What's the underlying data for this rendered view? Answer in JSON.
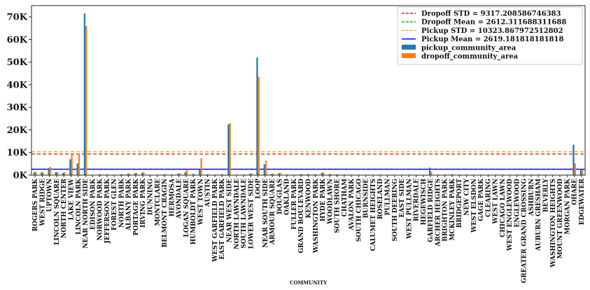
{
  "chart_data": {
    "type": "bar",
    "xlabel": "COMMUNITY",
    "ylabel": "",
    "ylim": [
      0,
      75000
    ],
    "y_ticks": [
      0,
      10000,
      20000,
      30000,
      40000,
      50000,
      60000,
      70000
    ],
    "y_tick_labels": [
      "0K",
      "10K",
      "20K",
      "30K",
      "40K",
      "50K",
      "60K",
      "70K"
    ],
    "grid": false,
    "legend_position": "top-right",
    "categories": [
      "ROGERS PARK",
      "WEST RIDGE",
      "UPTOWN",
      "LINCOLN SQUARE",
      "NORTH CENTER",
      "LAKE VIEW",
      "LINCOLN PARK",
      "NEAR NORTH SIDE",
      "EDISON PARK",
      "NORWOOD PARK",
      "JEFFERSON PARK",
      "FOREST GLEN",
      "NORTH PARK",
      "ALBANY PARK",
      "PORTAGE PARK",
      "IRVING PARK",
      "DUNNING",
      "MONTCLARE",
      "BELMONT CRAGIN",
      "HERMOSA",
      "AVONDALE",
      "LOGAN SQUARE",
      "HUMBOLDT PARK",
      "WEST TOWN",
      "AUSTIN",
      "WEST GARFIELD PARK",
      "EAST GARFIELD PARK",
      "NEAR WEST SIDE",
      "NORTH LAWNDALE",
      "SOUTH LAWNDALE",
      "LOWER WEST SIDE",
      "LOOP",
      "NEAR SOUTH SIDE",
      "ARMOUR SQUARE",
      "DOUGLAS",
      "OAKLAND",
      "FULLER PARK",
      "GRAND BOULEVARD",
      "KENWOOD",
      "WASHINGTON PARK",
      "HYDE PARK",
      "WOODLAWN",
      "SOUTH SHORE",
      "CHATHAM",
      "AVALON PARK",
      "SOUTH CHICAGO",
      "BURNSIDE",
      "CALUMET HEIGHTS",
      "ROSELAND",
      "PULLMAN",
      "SOUTH DEERING",
      "EAST SIDE",
      "WEST PULLMAN",
      "RIVERDALE",
      "HEGEWISCH",
      "GARFIELD RIDGE",
      "ARCHER HEIGHTS",
      "BRIGHTON PARK",
      "MCKINLEY PARK",
      "BRIDGEPORT",
      "NEW CITY",
      "WEST ELSDON",
      "GAGE PARK",
      "CLEARING",
      "WEST LAWN",
      "CHICAGO LAWN",
      "WEST ENGLEWOOD",
      "ENGLEWOOD",
      "GREATER GRAND CROSSING",
      "ASHBURN",
      "AUBURN GRESHAM",
      "BEVERLY",
      "WASHINGTON HEIGHTS",
      "MOUNT GREENWOOD",
      "MORGAN PARK",
      "OHARE",
      "EDGEWATER"
    ],
    "series": [
      {
        "name": "pickup_community_area",
        "color": "#1f77b4",
        "values": [
          1300,
          1200,
          3100,
          1300,
          1000,
          7000,
          5200,
          71500,
          60,
          300,
          200,
          100,
          300,
          600,
          800,
          1100,
          100,
          100,
          300,
          200,
          700,
          1300,
          400,
          2500,
          300,
          200,
          300,
          22500,
          150,
          150,
          600,
          52000,
          4800,
          500,
          800,
          200,
          100,
          400,
          400,
          300,
          1000,
          400,
          300,
          200,
          100,
          150,
          50,
          100,
          150,
          50,
          50,
          100,
          50,
          50,
          50,
          3300,
          150,
          200,
          300,
          200,
          150,
          100,
          100,
          150,
          150,
          150,
          100,
          150,
          200,
          150,
          150,
          150,
          100,
          100,
          100,
          13500,
          2800
        ]
      },
      {
        "name": "dropoff_community_area",
        "color": "#ff7f0e",
        "values": [
          1500,
          1400,
          3700,
          1400,
          1200,
          9000,
          9400,
          66000,
          80,
          400,
          300,
          150,
          400,
          800,
          1000,
          1300,
          150,
          150,
          400,
          300,
          900,
          2500,
          600,
          7500,
          400,
          300,
          400,
          23000,
          250,
          250,
          800,
          43500,
          6500,
          700,
          1000,
          300,
          150,
          500,
          500,
          400,
          1300,
          500,
          400,
          300,
          150,
          250,
          80,
          150,
          250,
          80,
          80,
          150,
          80,
          80,
          80,
          1500,
          250,
          300,
          400,
          300,
          250,
          150,
          150,
          250,
          250,
          250,
          150,
          250,
          300,
          250,
          250,
          250,
          150,
          150,
          150,
          5200,
          2500
        ]
      }
    ],
    "reference_lines": [
      {
        "label": "Dropoff STD = 9317.208586746383",
        "value": 9317.208586746383,
        "color": "#d62728",
        "style": "dashed"
      },
      {
        "label": "Dropoff Mean = 2612.311688311688",
        "value": 2612.311688311688,
        "color": "#2ca02c",
        "style": "dashed"
      },
      {
        "label": "Pickup STD = 10323.867972512802",
        "value": 10323.867972512802,
        "color": "#bcbd22",
        "style": "dashed"
      },
      {
        "label": "Pickup Mean = 2619.181818181818",
        "value": 2619.181818181818,
        "color": "#0000ff",
        "style": "solid"
      }
    ]
  }
}
